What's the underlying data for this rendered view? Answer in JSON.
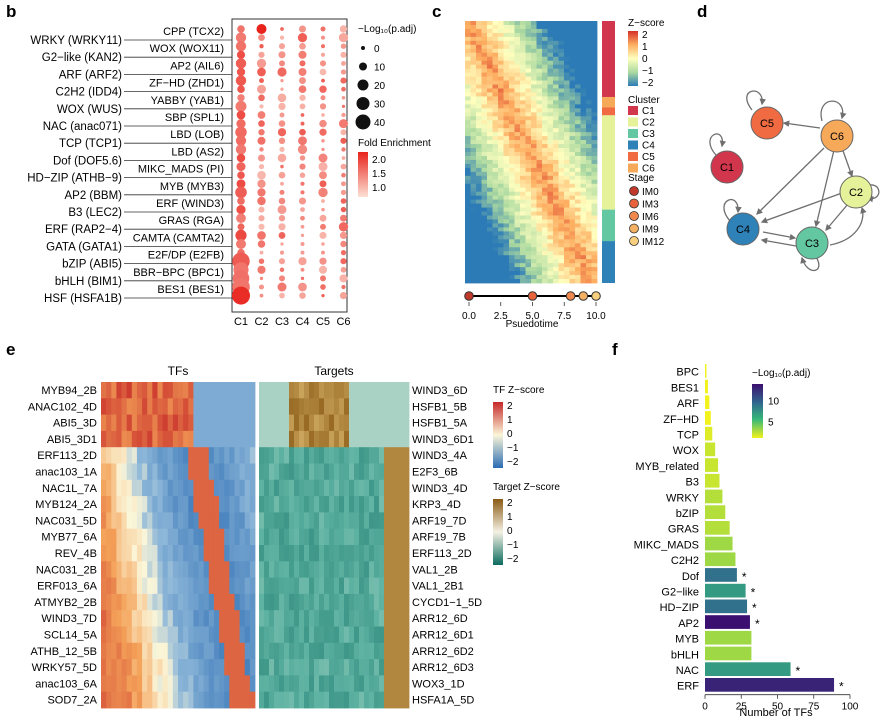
{
  "panel_letters": {
    "b": "b",
    "c": "c",
    "d": "d",
    "e": "e",
    "f": "f"
  },
  "colors": {
    "red_max": "#e8231c",
    "red_min": "#fbd6c8",
    "heat_high": "#c0392b",
    "heat_mid": "#fcfcbe",
    "heat_low": "#2c7bb6",
    "target_high": "#8a5a14",
    "target_low": "#0b6b5f",
    "viridis_high": "#3b0f6f",
    "viridis_low": "#f2f21c",
    "cluster_C1": "#d1364d",
    "cluster_C2": "#e6f29a",
    "cluster_C3": "#63c7a2",
    "cluster_C4": "#2f82b8",
    "cluster_C5": "#f06b42",
    "cluster_C6": "#f7a95a"
  },
  "chart_data": [
    {
      "type": "scatter",
      "panel": "b",
      "left_labels": [
        "WRKY (WRKY11)",
        "G2−like (KAN2)",
        "ARF (ARF2)",
        "C2H2 (IDD4)",
        "WOX (WUS)",
        "NAC (anac071)",
        "TCP (TCP1)",
        "Dof (DOF5.6)",
        "HD−ZIP (ATHB−9)",
        "AP2 (BBM)",
        "B3 (LEC2)",
        "ERF (RAP2−4)",
        "GATA (GATA1)",
        "bZIP (ABI5)",
        "bHLH (BIM1)",
        "HSF (HSFA1B)"
      ],
      "right_labels": [
        "CPP (TCX2)",
        "WOX (WOX11)",
        "AP2 (AIL6)",
        "ZF−HD (ZHD1)",
        "YABBY (YAB1)",
        "SBP (SPL1)",
        "LBD (LOB)",
        "LBD (AS2)",
        "MIKC_MADS (PI)",
        "MYB (MYB3)",
        "ERF (WIND3)",
        "GRAS (RGA)",
        "CAMTA (CAMTA2)",
        "E2F/DP (E2FB)",
        "BBR−BPC (BPC1)",
        "BES1 (BES1)"
      ],
      "categories": [
        "C1",
        "C2",
        "C3",
        "C4",
        "C5",
        "C6"
      ],
      "size_legend_title": "−Log₁₀(p.adj)",
      "size_legend_values": [
        "0",
        "10",
        "20",
        "30",
        "40"
      ],
      "color_legend_title": "Fold Enrichment",
      "color_legend_values": [
        "2.0",
        "1.5",
        "1.0"
      ]
    },
    {
      "type": "heatmap",
      "panel": "c",
      "xlabel": "Psuedotime",
      "x_ticks": [
        "0.0",
        "2.5",
        "5.0",
        "7.5",
        "10.0"
      ],
      "zscore_title": "Z−score",
      "zscore_ticks": [
        "2",
        "1",
        "0",
        "−1",
        "−2"
      ],
      "cluster_title": "Cluster",
      "clusters": [
        "C1",
        "C2",
        "C3",
        "C4",
        "C5",
        "C6"
      ],
      "stage_title": "Stage",
      "stages": [
        "IM0",
        "IM3",
        "IM6",
        "IM9",
        "IM12"
      ],
      "stage_positions": [
        0.0,
        5.0,
        8.0,
        9.0,
        10.0
      ]
    },
    {
      "type": "diagram",
      "panel": "d",
      "nodes": [
        "C5",
        "C6",
        "C1",
        "C2",
        "C4",
        "C3"
      ]
    },
    {
      "type": "heatmap",
      "panel": "e",
      "col_titles": [
        "TFs",
        "Targets"
      ],
      "tf_rows": [
        "MYB94_2B",
        "ANAC102_4D",
        "ABI5_3D",
        "ABI5_3D1",
        "ERF113_2D",
        "anac103_1A",
        "NAC1L_7A",
        "MYB124_2A",
        "NAC031_5D",
        "MYB77_6A",
        "REV_4B",
        "NAC031_2B",
        "ERF013_6A",
        "ATMYB2_2B",
        "WIND3_7D",
        "SCL14_5A",
        "ATHB_12_5B",
        "WRKY57_5D",
        "anac103_6A",
        "SOD7_2A"
      ],
      "target_rows": [
        "WIND3_6D",
        "HSFB1_5B",
        "HSFB1_5A",
        "WIND3_6D1",
        "WIND3_4A",
        "E2F3_6B",
        "WIND3_4D",
        "KRP3_4D",
        "ARF19_7D",
        "ARF19_7B",
        "ERF113_2D",
        "VAL1_2B",
        "VAL1_2B1",
        "CYCD1−1_5D",
        "ARR12_6D",
        "ARR12_6D1",
        "ARR12_6D2",
        "ARR12_6D3",
        "WOX3_1D",
        "HSFA1A_5D"
      ],
      "tf_legend_title": "TF Z−score",
      "tf_legend_ticks": [
        "2",
        "1",
        "0",
        "−1",
        "−2"
      ],
      "target_legend_title": "Target Z−score",
      "target_legend_ticks": [
        "2",
        "1",
        "0",
        "−1",
        "−2"
      ]
    },
    {
      "type": "bar",
      "panel": "f",
      "orientation": "horizontal",
      "categories": [
        "BPC",
        "BES1",
        "ARF",
        "ZF−HD",
        "TCP",
        "WOX",
        "MYB_related",
        "B3",
        "WRKY",
        "bZIP",
        "GRAS",
        "MIKC_MADS",
        "C2H2",
        "Dof",
        "G2−like",
        "HD−ZIP",
        "AP2",
        "MYB",
        "bHLH",
        "NAC",
        "ERF"
      ],
      "values": [
        1,
        2,
        3,
        4,
        5,
        7,
        9,
        10,
        12,
        14,
        17,
        19,
        21,
        22,
        28,
        29,
        31,
        32,
        32,
        59,
        89
      ],
      "neglog10_padj": [
        1,
        1,
        1,
        1,
        1.5,
        2,
        2,
        2,
        2.5,
        2.5,
        2.5,
        3,
        3,
        9,
        7,
        9,
        14,
        3,
        3,
        7,
        13
      ],
      "significant_marker": "*",
      "significant": [
        false,
        false,
        false,
        false,
        false,
        false,
        false,
        false,
        false,
        false,
        false,
        false,
        false,
        true,
        true,
        true,
        true,
        false,
        false,
        true,
        true
      ],
      "xlabel": "Number of TFs",
      "x_ticks": [
        "0",
        "25",
        "50",
        "75",
        "100"
      ],
      "xlim": [
        0,
        100
      ],
      "legend_title": "−Log₁₀(p.adj)",
      "legend_ticks": [
        "10",
        "5"
      ],
      "legend_range": [
        1,
        14
      ]
    }
  ]
}
